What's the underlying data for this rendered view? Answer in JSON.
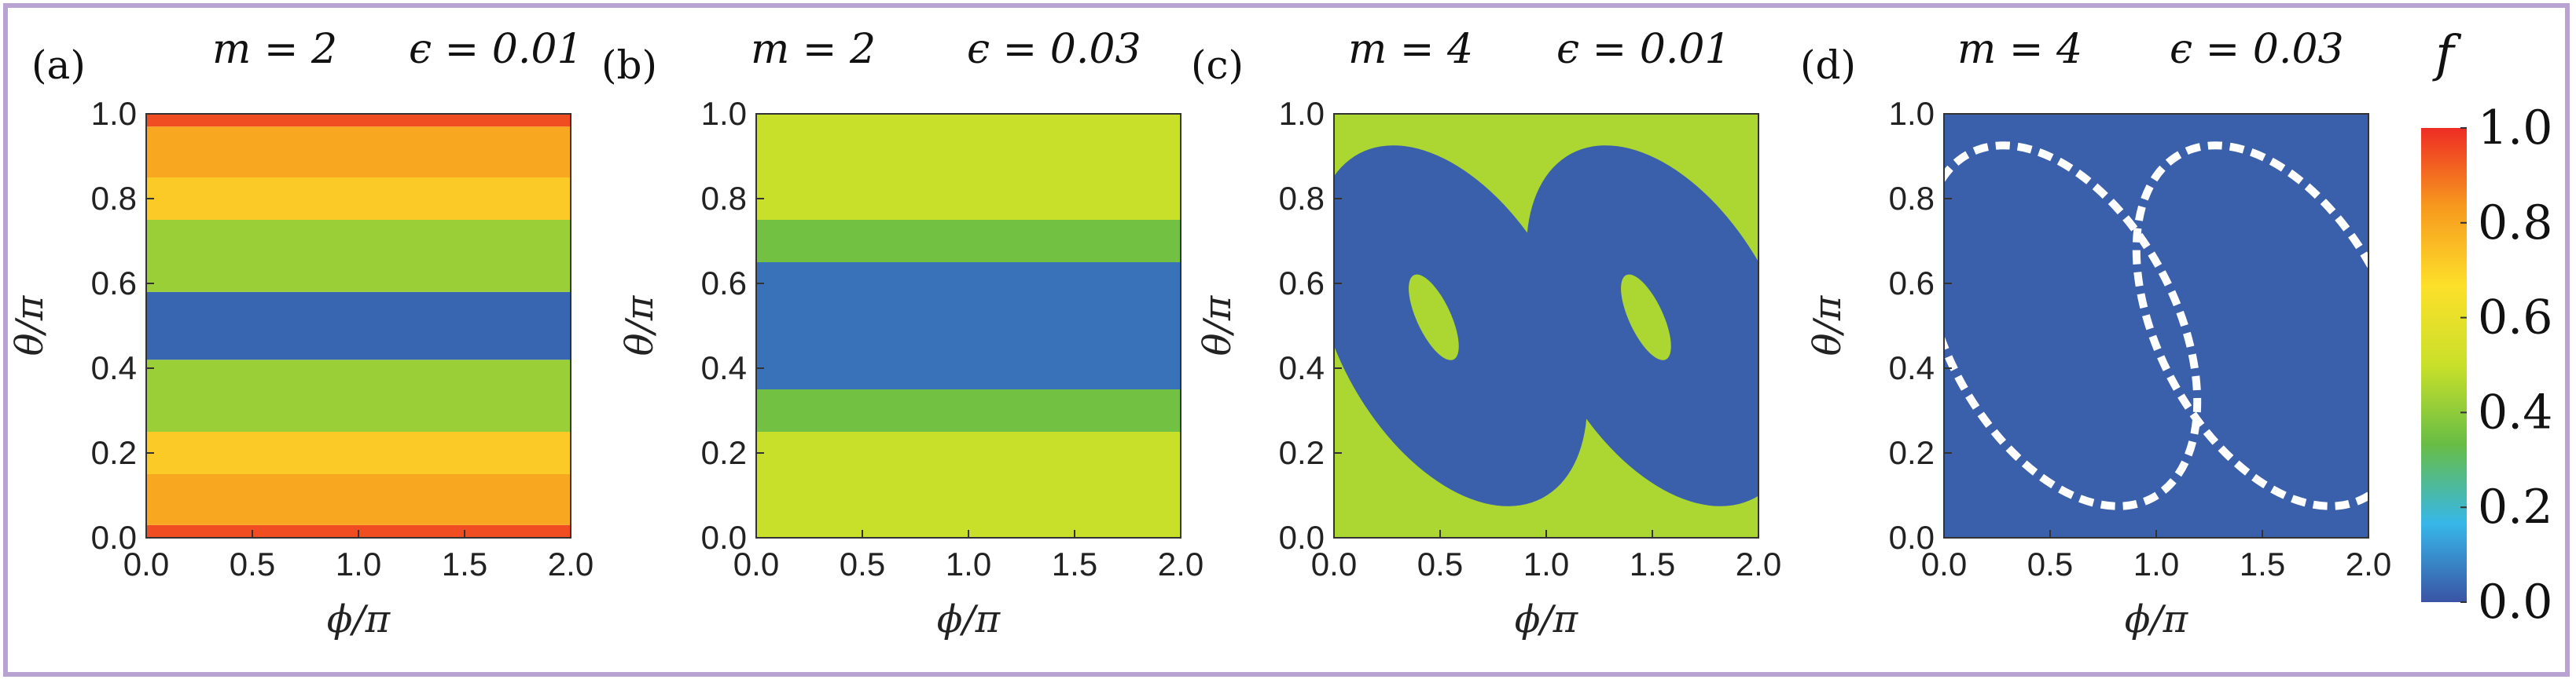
{
  "chart_data": [
    {
      "type": "heatmap",
      "panel": "(a)",
      "params": {
        "m_label": "m = 2",
        "eps_label": "ϵ = 0.01"
      },
      "xlabel": "ϕ/π",
      "ylabel": "θ/π",
      "xlim": [
        0,
        2
      ],
      "ylim": [
        0,
        1
      ],
      "xticks": [
        "0.0",
        "0.5",
        "1.0",
        "1.5",
        "2.0"
      ],
      "yticks": [
        "0.0",
        "0.2",
        "0.4",
        "0.6",
        "0.8",
        "1.0"
      ],
      "bands": [
        {
          "y0": 0.0,
          "y1": 0.03,
          "f": 0.95
        },
        {
          "y0": 0.03,
          "y1": 0.15,
          "f": 0.8
        },
        {
          "y0": 0.15,
          "y1": 0.25,
          "f": 0.72
        },
        {
          "y0": 0.25,
          "y1": 0.42,
          "f": 0.42
        },
        {
          "y0": 0.42,
          "y1": 0.58,
          "f": 0.03
        },
        {
          "y0": 0.58,
          "y1": 0.75,
          "f": 0.42
        },
        {
          "y0": 0.75,
          "y1": 0.85,
          "f": 0.72
        },
        {
          "y0": 0.85,
          "y1": 0.97,
          "f": 0.8
        },
        {
          "y0": 0.97,
          "y1": 1.0,
          "f": 0.95
        }
      ]
    },
    {
      "type": "heatmap",
      "panel": "(b)",
      "params": {
        "m_label": "m = 2",
        "eps_label": "ϵ = 0.03"
      },
      "xlabel": "ϕ/π",
      "ylabel": "θ/π",
      "xlim": [
        0,
        2
      ],
      "ylim": [
        0,
        1
      ],
      "xticks": [
        "0.0",
        "0.5",
        "1.0",
        "1.5",
        "2.0"
      ],
      "yticks": [
        "0.0",
        "0.2",
        "0.4",
        "0.6",
        "0.8",
        "1.0"
      ],
      "bands": [
        {
          "y0": 0.0,
          "y1": 0.25,
          "f": 0.5
        },
        {
          "y0": 0.25,
          "y1": 0.35,
          "f": 0.35
        },
        {
          "y0": 0.35,
          "y1": 0.65,
          "f": 0.05
        },
        {
          "y0": 0.65,
          "y1": 0.75,
          "f": 0.35
        },
        {
          "y0": 0.75,
          "y1": 1.0,
          "f": 0.5
        }
      ]
    },
    {
      "type": "heatmap",
      "panel": "(c)",
      "params": {
        "m_label": "m = 4",
        "eps_label": "ϵ = 0.01"
      },
      "xlabel": "ϕ/π",
      "ylabel": "θ/π",
      "xlim": [
        0,
        2
      ],
      "ylim": [
        0,
        1
      ],
      "xticks": [
        "0.0",
        "0.5",
        "1.0",
        "1.5",
        "2.0"
      ],
      "yticks": [
        "0.0",
        "0.2",
        "0.4",
        "0.6",
        "0.8",
        "1.0"
      ],
      "background_f": 0.45,
      "regions": [
        {
          "shape": "lobe",
          "cx": 0.55,
          "cy": 0.5,
          "f": 0.02
        },
        {
          "shape": "lobe",
          "cx": 1.55,
          "cy": 0.5,
          "f": 0.02
        },
        {
          "shape": "island",
          "cx": 0.47,
          "cy": 0.52,
          "f": 0.45
        },
        {
          "shape": "island",
          "cx": 1.47,
          "cy": 0.52,
          "f": 0.45
        }
      ]
    },
    {
      "type": "heatmap",
      "panel": "(d)",
      "params": {
        "m_label": "m = 4",
        "eps_label": "ϵ = 0.03"
      },
      "xlabel": "ϕ/π",
      "ylabel": "θ/π",
      "xlim": [
        0,
        2
      ],
      "ylim": [
        0,
        1
      ],
      "xticks": [
        "0.0",
        "0.5",
        "1.0",
        "1.5",
        "2.0"
      ],
      "yticks": [
        "0.0",
        "0.2",
        "0.4",
        "0.6",
        "0.8",
        "1.0"
      ],
      "background_f": 0.02,
      "regions": [
        {
          "shape": "lobe-outline",
          "cx": 0.55,
          "cy": 0.5,
          "f": "white"
        },
        {
          "shape": "lobe-outline",
          "cx": 1.55,
          "cy": 0.5,
          "f": "white"
        }
      ]
    }
  ],
  "colorbar": {
    "title": "f",
    "ticks": [
      "0.0",
      "0.2",
      "0.4",
      "0.6",
      "0.8",
      "1.0"
    ],
    "range": [
      0,
      1
    ],
    "colors": [
      "#3a54a4",
      "#37b7e8",
      "#68bd45",
      "#c9e02a",
      "#fde02a",
      "#f79a1e",
      "#ee2c24"
    ]
  }
}
